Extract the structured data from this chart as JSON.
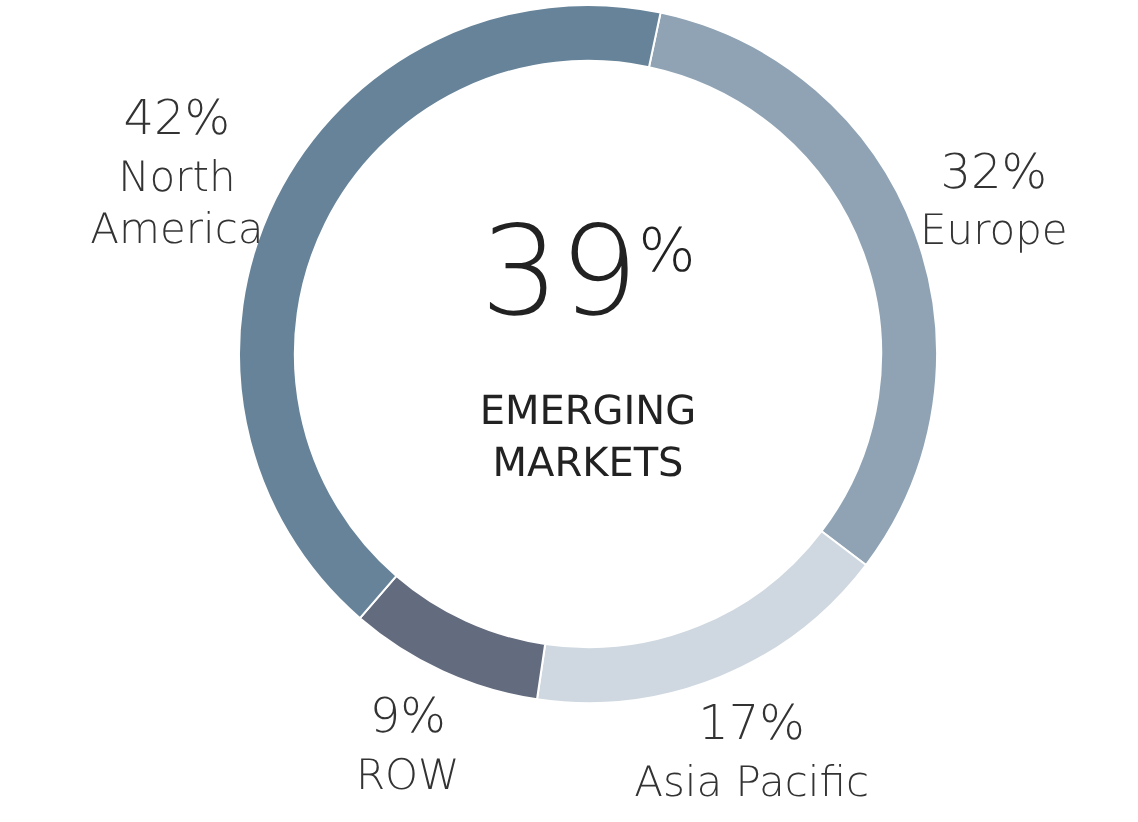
{
  "chart_data": {
    "type": "donut",
    "categories": [
      "Europe",
      "Asia Pacific",
      "ROW",
      "North America"
    ],
    "values": [
      32,
      17,
      9,
      42
    ],
    "colors": [
      "#8fa3b5",
      "#cfd8e0",
      "#636b7e",
      "#668399"
    ],
    "value_labels": [
      "32%",
      "17%",
      "9%",
      "42%"
    ],
    "annotations": [
      "39$^{%}$",
      "EMERGING MARKETS"
    ],
    "legend": false
  }
}
